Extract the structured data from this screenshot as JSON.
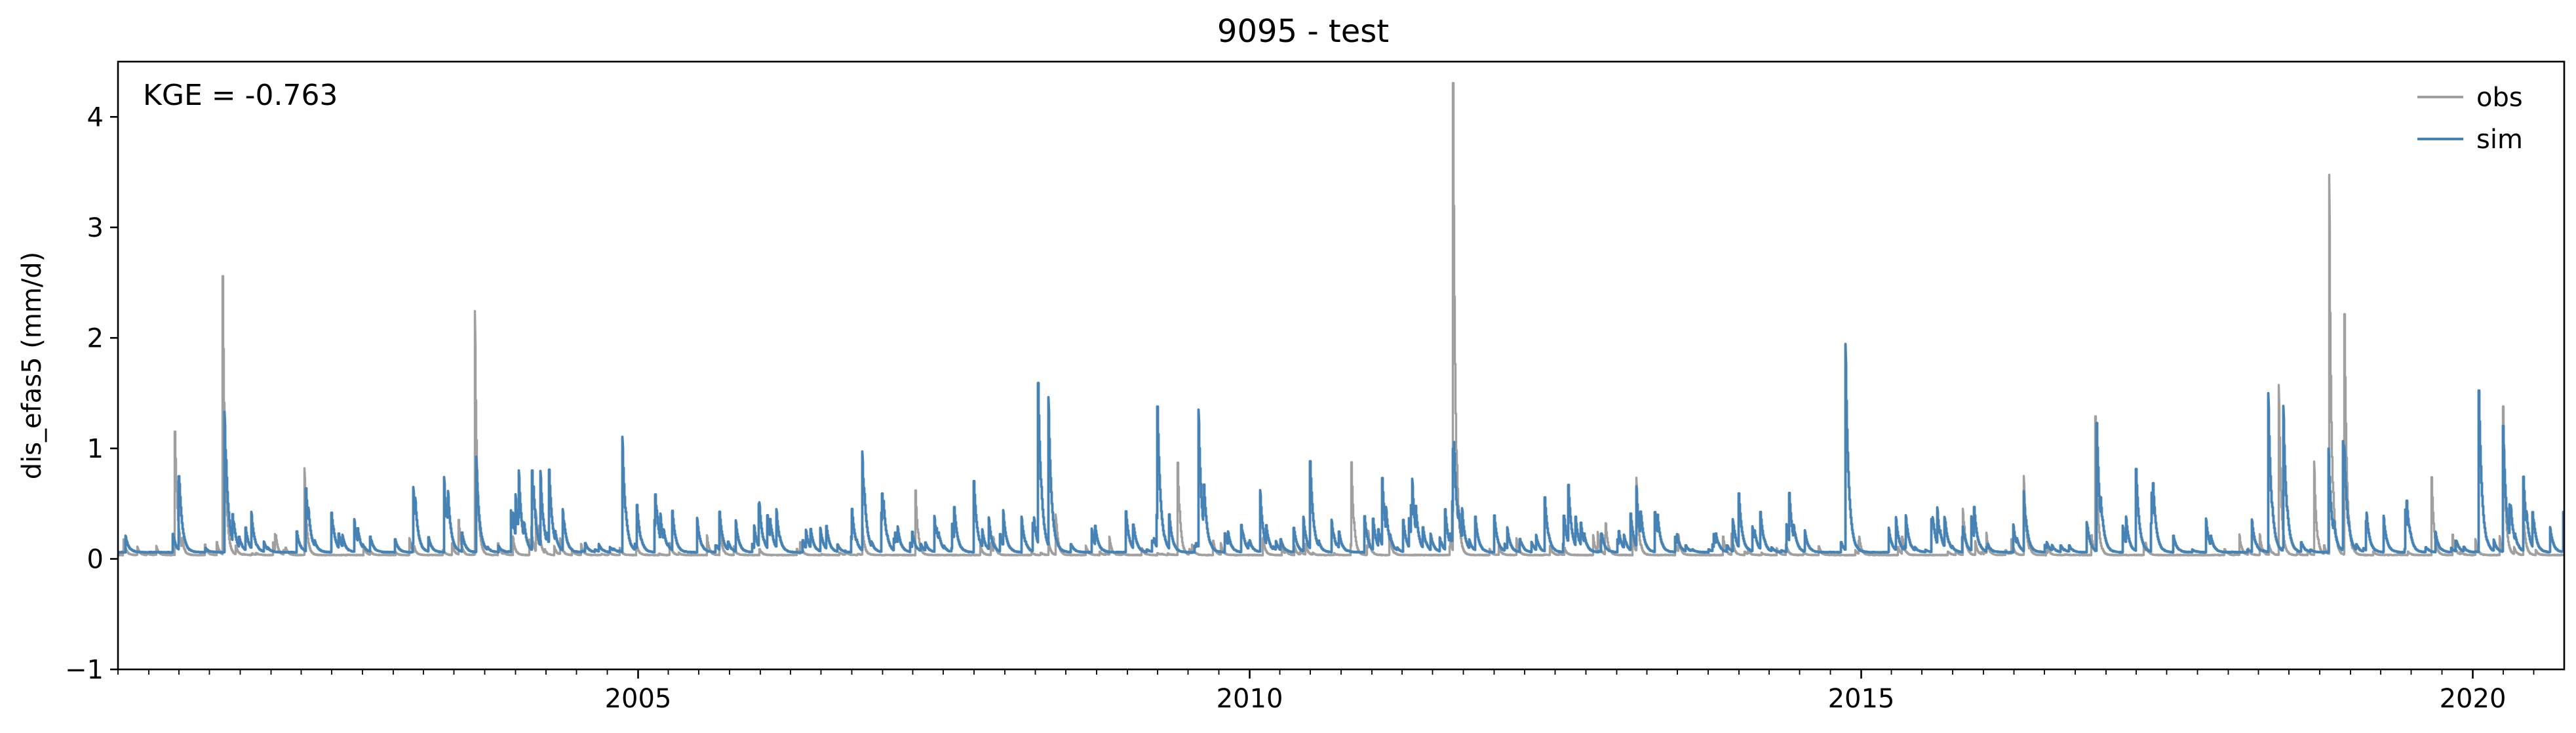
{
  "chart_data": {
    "type": "line",
    "title": "9095 - test",
    "xlabel": "",
    "ylabel": "dis_efas5 (mm/d)",
    "xlim": [
      "2000-10-01",
      "2020-09-30"
    ],
    "ylim": [
      -1,
      4.5
    ],
    "x_ticks": [
      {
        "value": "2005-01-01",
        "label": "2005"
      },
      {
        "value": "2010-01-01",
        "label": "2010"
      },
      {
        "value": "2015-01-01",
        "label": "2015"
      },
      {
        "value": "2020-01-01",
        "label": "2020"
      }
    ],
    "y_ticks": [
      {
        "value": -1,
        "label": "−1"
      },
      {
        "value": 0,
        "label": "0"
      },
      {
        "value": 1,
        "label": "1"
      },
      {
        "value": 2,
        "label": "2"
      },
      {
        "value": 3,
        "label": "3"
      },
      {
        "value": 4,
        "label": "4"
      }
    ],
    "grid": false,
    "legend_position": "top-right",
    "annotation": "KGE = -0.763",
    "series": [
      {
        "name": "obs",
        "color": "#a0a0a0",
        "peaks": [
          {
            "x": "2001-03-20",
            "y": 1.15
          },
          {
            "x": "2001-08-10",
            "y": 2.55
          },
          {
            "x": "2002-04-10",
            "y": 0.82
          },
          {
            "x": "2003-07-15",
            "y": 0.35
          },
          {
            "x": "2003-09-01",
            "y": 2.24
          },
          {
            "x": "2004-03-01",
            "y": 0.4
          },
          {
            "x": "2005-09-01",
            "y": 0.3
          },
          {
            "x": "2006-11-01",
            "y": 0.3
          },
          {
            "x": "2007-04-10",
            "y": 0.62
          },
          {
            "x": "2008-06-01",
            "y": 0.4
          },
          {
            "x": "2009-06-01",
            "y": 0.87
          },
          {
            "x": "2010-11-01",
            "y": 0.8
          },
          {
            "x": "2011-09-01",
            "y": 4.27
          },
          {
            "x": "2013-03-01",
            "y": 0.7
          },
          {
            "x": "2015-11-01",
            "y": 0.45
          },
          {
            "x": "2016-05-01",
            "y": 0.75
          },
          {
            "x": "2016-12-01",
            "y": 1.26
          },
          {
            "x": "2018-06-01",
            "y": 1.57
          },
          {
            "x": "2018-09-15",
            "y": 0.88
          },
          {
            "x": "2018-10-30",
            "y": 3.47
          },
          {
            "x": "2018-12-15",
            "y": 2.21
          },
          {
            "x": "2019-09-01",
            "y": 0.74
          },
          {
            "x": "2020-04-01",
            "y": 1.34
          },
          {
            "x": "2020-06-01",
            "y": 0.4
          }
        ]
      },
      {
        "name": "sim",
        "color": "#4682b4",
        "peaks": [
          {
            "x": "2001-04-01",
            "y": 0.72
          },
          {
            "x": "2001-08-15",
            "y": 1.33
          },
          {
            "x": "2002-04-15",
            "y": 0.55
          },
          {
            "x": "2002-07-01",
            "y": 0.42
          },
          {
            "x": "2003-03-01",
            "y": 0.58
          },
          {
            "x": "2003-06-01",
            "y": 0.74
          },
          {
            "x": "2003-09-05",
            "y": 0.92
          },
          {
            "x": "2004-01-10",
            "y": 0.52
          },
          {
            "x": "2004-02-20",
            "y": 0.78
          },
          {
            "x": "2004-03-15",
            "y": 0.73
          },
          {
            "x": "2004-04-10",
            "y": 0.72
          },
          {
            "x": "2004-11-15",
            "y": 1.1
          },
          {
            "x": "2005-09-01",
            "y": 0.4
          },
          {
            "x": "2006-11-01",
            "y": 0.95
          },
          {
            "x": "2007-10-01",
            "y": 0.7
          },
          {
            "x": "2008-04-10",
            "y": 1.51
          },
          {
            "x": "2008-05-10",
            "y": 1.4
          },
          {
            "x": "2009-04-01",
            "y": 1.1
          },
          {
            "x": "2009-08-01",
            "y": 1.3
          },
          {
            "x": "2010-02-01",
            "y": 0.62
          },
          {
            "x": "2010-07-01",
            "y": 0.85
          },
          {
            "x": "2011-02-01",
            "y": 0.67
          },
          {
            "x": "2011-09-01",
            "y": 0.66
          },
          {
            "x": "2012-06-01",
            "y": 0.55
          },
          {
            "x": "2013-03-01",
            "y": 0.6
          },
          {
            "x": "2014-01-01",
            "y": 0.55
          },
          {
            "x": "2014-06-01",
            "y": 0.5
          },
          {
            "x": "2014-11-15",
            "y": 1.92
          },
          {
            "x": "2016-05-01",
            "y": 0.6
          },
          {
            "x": "2016-12-05",
            "y": 1.22
          },
          {
            "x": "2017-04-01",
            "y": 0.8
          },
          {
            "x": "2018-05-01",
            "y": 1.5
          },
          {
            "x": "2018-06-15",
            "y": 1.35
          },
          {
            "x": "2018-10-28",
            "y": 1.0
          },
          {
            "x": "2018-12-10",
            "y": 1.03
          },
          {
            "x": "2020-01-20",
            "y": 1.52
          },
          {
            "x": "2020-04-01",
            "y": 1.2
          },
          {
            "x": "2020-06-01",
            "y": 0.5
          }
        ]
      }
    ]
  }
}
